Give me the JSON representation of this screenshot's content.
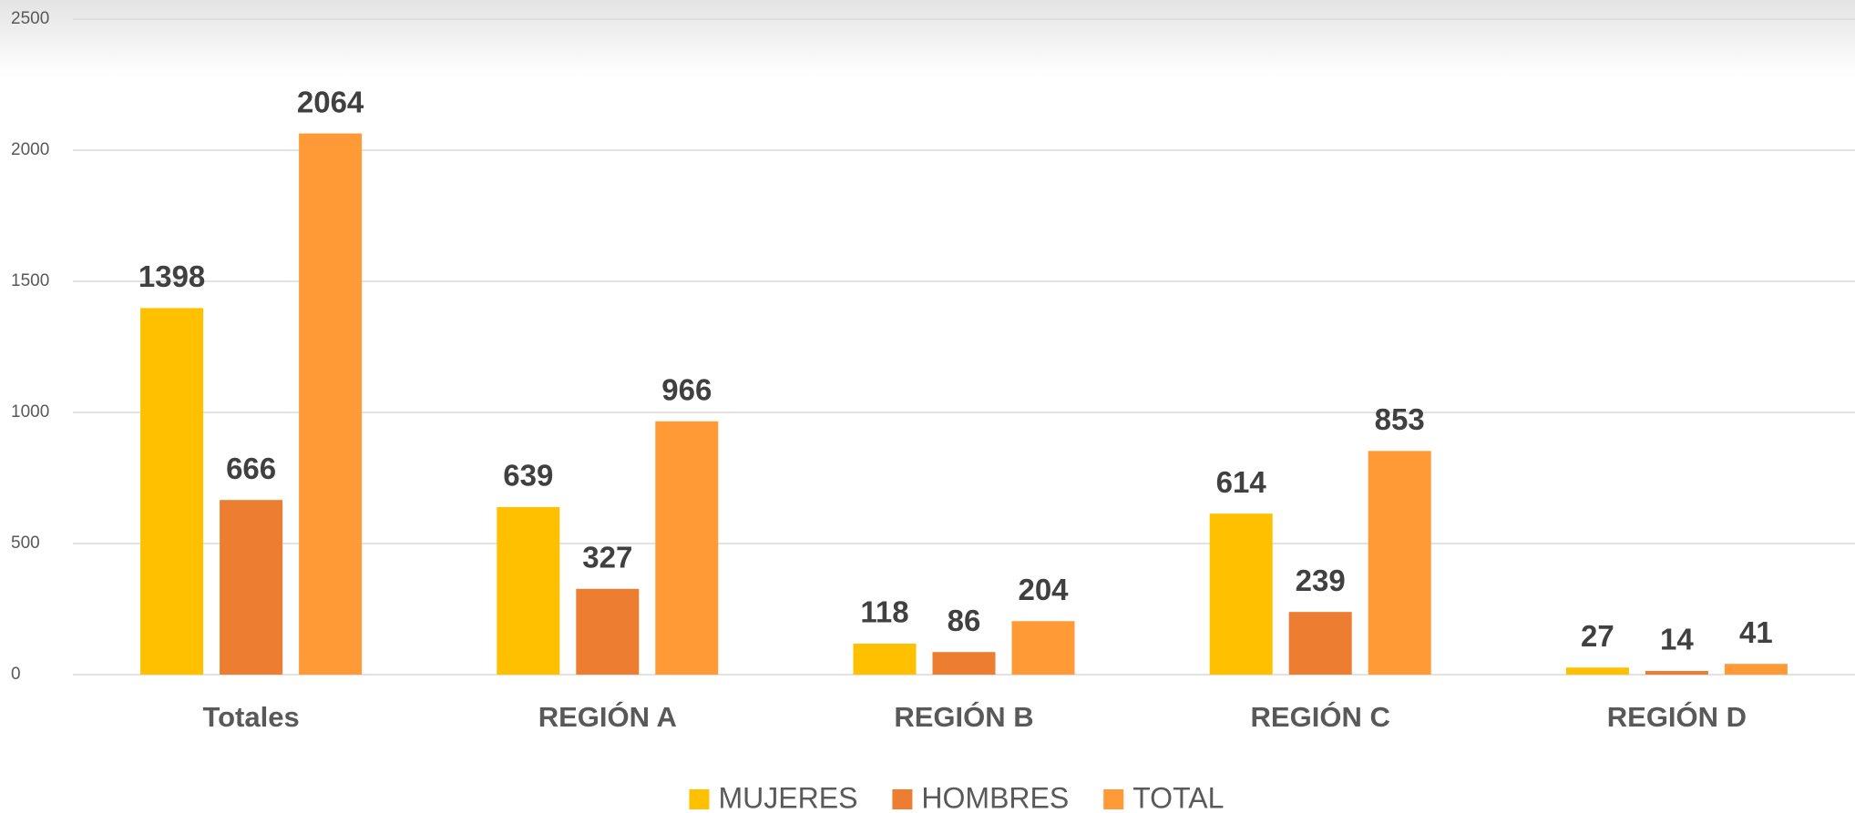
{
  "chart_data": {
    "type": "bar",
    "categories": [
      "Totales",
      "REGIÓN A",
      "REGIÓN B",
      "REGIÓN C",
      "REGIÓN D"
    ],
    "series": [
      {
        "name": "MUJERES",
        "color": "#FFC000",
        "values": [
          1398,
          639,
          118,
          614,
          27
        ]
      },
      {
        "name": "HOMBRES",
        "color": "#ED7D31",
        "values": [
          666,
          327,
          86,
          239,
          14
        ]
      },
      {
        "name": "TOTAL",
        "color": "#FF9A36",
        "values": [
          2064,
          966,
          204,
          853,
          41
        ]
      }
    ],
    "ylim": [
      0,
      2500
    ],
    "yticks": [
      0,
      500,
      1000,
      1500,
      2000,
      2500
    ],
    "grid": true,
    "legend": "bottom"
  }
}
